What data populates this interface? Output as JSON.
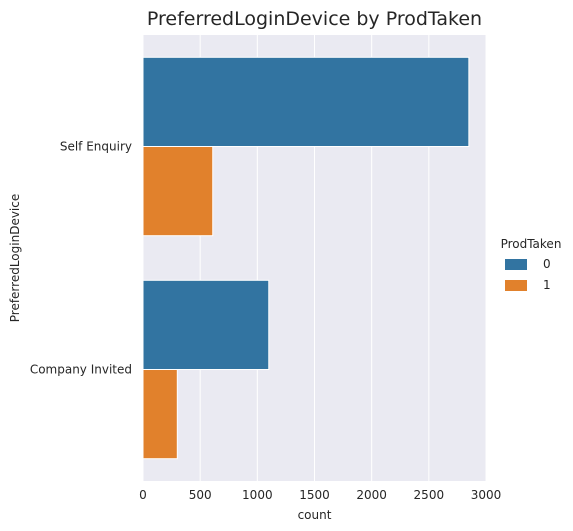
{
  "chart_data": {
    "type": "bar",
    "orientation": "horizontal",
    "title": "PreferredLoginDevice by ProdTaken",
    "xlabel": "count",
    "ylabel": "PreferredLoginDevice",
    "categories": [
      "Self Enquiry",
      "Company Invited"
    ],
    "series": [
      {
        "name": "0",
        "color": "#3274a1",
        "values": [
          2850,
          1100
        ]
      },
      {
        "name": "1",
        "color": "#e1812c",
        "values": [
          610,
          300
        ]
      }
    ],
    "xlim": [
      0,
      3000
    ],
    "xticks": [
      "0",
      "500",
      "1000",
      "1500",
      "2000",
      "2500",
      "3000"
    ],
    "grid": true,
    "legend": {
      "title": "ProdTaken",
      "placement": "right"
    },
    "background": "#eaeaf2"
  }
}
